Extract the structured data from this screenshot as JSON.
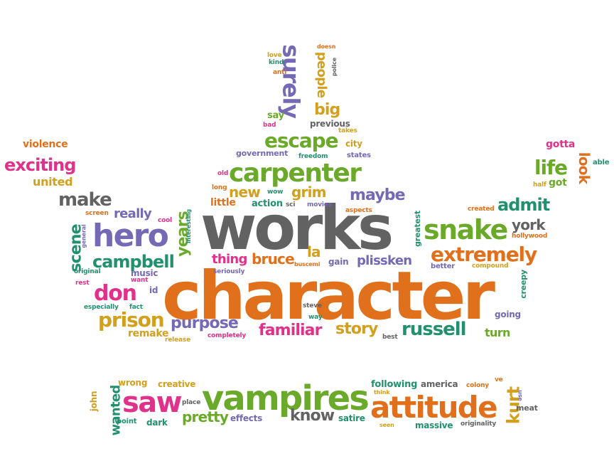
{
  "palette": {
    "gray": "#626262",
    "orange": "#e0701b",
    "green": "#6aa929",
    "purple": "#7568b5",
    "pink": "#e2318a",
    "teal": "#21906f",
    "gold": "#d3a01d"
  },
  "words": [
    {
      "text": "character",
      "color": "orange"
    },
    {
      "text": "works",
      "color": "gray"
    },
    {
      "text": "vampires",
      "color": "green"
    },
    {
      "text": "attitude",
      "color": "orange"
    },
    {
      "text": "carpenter",
      "color": "green"
    },
    {
      "text": "hero",
      "color": "purple"
    },
    {
      "text": "snake",
      "color": "green"
    },
    {
      "text": "saw",
      "color": "pink"
    },
    {
      "text": "extremely",
      "color": "orange"
    },
    {
      "text": "surely",
      "color": "purple"
    },
    {
      "text": "escape",
      "color": "green"
    },
    {
      "text": "campbell",
      "color": "teal"
    },
    {
      "text": "russell",
      "color": "teal"
    },
    {
      "text": "prison",
      "color": "gold"
    },
    {
      "text": "don",
      "color": "pink"
    },
    {
      "text": "make",
      "color": "gray"
    },
    {
      "text": "exciting",
      "color": "pink"
    },
    {
      "text": "purpose",
      "color": "purple"
    },
    {
      "text": "familiar",
      "color": "pink"
    },
    {
      "text": "story",
      "color": "gold"
    },
    {
      "text": "maybe",
      "color": "purple"
    },
    {
      "text": "life",
      "color": "green"
    },
    {
      "text": "admit",
      "color": "teal"
    },
    {
      "text": "york",
      "color": "gray"
    },
    {
      "text": "kurt",
      "color": "gold"
    },
    {
      "text": "know",
      "color": "gray"
    },
    {
      "text": "pretty",
      "color": "green"
    },
    {
      "text": "scene",
      "color": "teal"
    },
    {
      "text": "years",
      "color": "green"
    },
    {
      "text": "bruce",
      "color": "orange"
    },
    {
      "text": "thing",
      "color": "pink"
    },
    {
      "text": "la",
      "color": "gold"
    },
    {
      "text": "plissken",
      "color": "purple"
    },
    {
      "text": "grim",
      "color": "gold"
    },
    {
      "text": "new",
      "color": "gold"
    },
    {
      "text": "big",
      "color": "gold"
    },
    {
      "text": "people",
      "color": "gold"
    },
    {
      "text": "really",
      "color": "purple"
    },
    {
      "text": "look",
      "color": "orange"
    },
    {
      "text": "wanted",
      "color": "teal"
    },
    {
      "text": "turn",
      "color": "green"
    },
    {
      "text": "remake",
      "color": "gold"
    },
    {
      "text": "united",
      "color": "gold"
    },
    {
      "text": "violence",
      "color": "orange"
    },
    {
      "text": "gotta",
      "color": "pink"
    },
    {
      "text": "got",
      "color": "green"
    },
    {
      "text": "able",
      "color": "teal"
    },
    {
      "text": "half",
      "color": "gold"
    },
    {
      "text": "hollywood",
      "color": "orange"
    },
    {
      "text": "created",
      "color": "orange"
    },
    {
      "text": "better",
      "color": "purple"
    },
    {
      "text": "compound",
      "color": "gold"
    },
    {
      "text": "creepy",
      "color": "teal"
    },
    {
      "text": "going",
      "color": "purple"
    },
    {
      "text": "previous",
      "color": "gray"
    },
    {
      "text": "takes",
      "color": "gold"
    },
    {
      "text": "city",
      "color": "gold"
    },
    {
      "text": "states",
      "color": "purple"
    },
    {
      "text": "freedom",
      "color": "teal"
    },
    {
      "text": "government",
      "color": "purple"
    },
    {
      "text": "say",
      "color": "green"
    },
    {
      "text": "bad",
      "color": "pink"
    },
    {
      "text": "love",
      "color": "gold"
    },
    {
      "text": "kind",
      "color": "teal"
    },
    {
      "text": "anti",
      "color": "orange"
    },
    {
      "text": "doesn",
      "color": "orange"
    },
    {
      "text": "police",
      "color": "gray"
    },
    {
      "text": "old",
      "color": "pink"
    },
    {
      "text": "long",
      "color": "orange"
    },
    {
      "text": "wow",
      "color": "teal"
    },
    {
      "text": "little",
      "color": "orange"
    },
    {
      "text": "action",
      "color": "teal"
    },
    {
      "text": "sci",
      "color": "gray"
    },
    {
      "text": "movies",
      "color": "purple"
    },
    {
      "text": "aspects",
      "color": "orange"
    },
    {
      "text": "greatest",
      "color": "teal"
    },
    {
      "text": "screen",
      "color": "orange"
    },
    {
      "text": "cool",
      "color": "pink"
    },
    {
      "text": "general",
      "color": "purple"
    },
    {
      "text": "interesting",
      "color": "teal"
    },
    {
      "text": "original",
      "color": "teal"
    },
    {
      "text": "music",
      "color": "purple"
    },
    {
      "text": "rest",
      "color": "pink"
    },
    {
      "text": "want",
      "color": "pink"
    },
    {
      "text": "id",
      "color": "purple"
    },
    {
      "text": "seriously",
      "color": "purple"
    },
    {
      "text": "buscemi",
      "color": "orange"
    },
    {
      "text": "gain",
      "color": "purple"
    },
    {
      "text": "especially",
      "color": "teal"
    },
    {
      "text": "fact",
      "color": "teal"
    },
    {
      "text": "steve",
      "color": "gray"
    },
    {
      "text": "way",
      "color": "teal"
    },
    {
      "text": "release",
      "color": "gold"
    },
    {
      "text": "completely",
      "color": "pink"
    },
    {
      "text": "best",
      "color": "gray"
    },
    {
      "text": "john",
      "color": "gold"
    },
    {
      "text": "wrong",
      "color": "gold"
    },
    {
      "text": "creative",
      "color": "gold"
    },
    {
      "text": "point",
      "color": "teal"
    },
    {
      "text": "dark",
      "color": "teal"
    },
    {
      "text": "place",
      "color": "gray"
    },
    {
      "text": "effects",
      "color": "purple"
    },
    {
      "text": "satire",
      "color": "teal"
    },
    {
      "text": "following",
      "color": "teal"
    },
    {
      "text": "think",
      "color": "gold"
    },
    {
      "text": "seen",
      "color": "gold"
    },
    {
      "text": "america",
      "color": "gray"
    },
    {
      "text": "colony",
      "color": "orange"
    },
    {
      "text": "massive",
      "color": "teal"
    },
    {
      "text": "originality",
      "color": "gray"
    },
    {
      "text": "ve",
      "color": "orange"
    },
    {
      "text": "use",
      "color": "purple"
    },
    {
      "text": "meat",
      "color": "gray"
    }
  ]
}
